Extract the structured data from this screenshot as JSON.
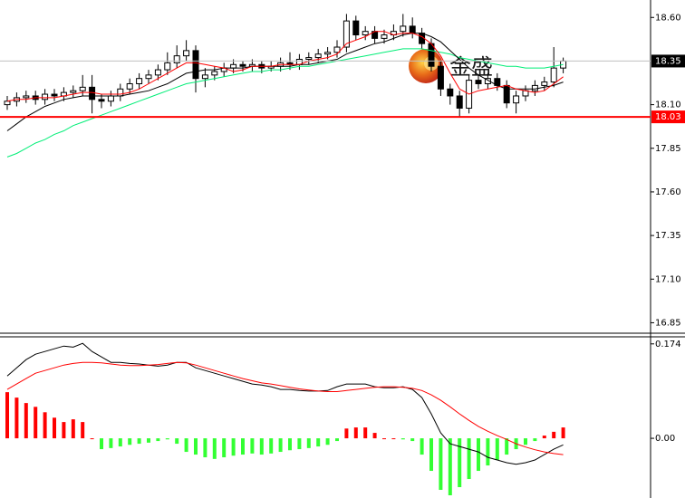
{
  "watermark": "金盛",
  "chart_data": [
    {
      "type": "candlestick",
      "open": [
        18.1,
        18.12,
        18.14,
        18.15,
        18.13,
        18.16,
        18.15,
        18.17,
        18.18,
        18.2,
        18.13,
        18.12,
        18.15,
        18.19,
        18.22,
        18.25,
        18.27,
        18.3,
        18.34,
        18.38,
        18.41,
        18.25,
        18.27,
        18.29,
        18.31,
        18.33,
        18.32,
        18.33,
        18.31,
        18.32,
        18.34,
        18.33,
        18.36,
        18.37,
        18.39,
        18.4,
        18.43,
        18.58,
        18.5,
        18.52,
        18.48,
        18.5,
        18.52,
        18.55,
        18.51,
        18.45,
        18.32,
        18.19,
        18.15,
        18.08,
        18.24,
        18.22,
        18.25,
        18.21,
        18.11,
        18.15,
        18.18,
        18.21,
        18.23,
        18.31
      ],
      "high": [
        18.15,
        18.17,
        18.18,
        18.18,
        18.19,
        18.19,
        18.2,
        18.21,
        18.27,
        18.27,
        18.16,
        18.18,
        18.22,
        18.25,
        18.28,
        18.3,
        18.33,
        18.4,
        18.44,
        18.47,
        18.44,
        18.31,
        18.32,
        18.34,
        18.36,
        18.35,
        18.36,
        18.35,
        18.35,
        18.37,
        18.4,
        18.39,
        18.4,
        18.42,
        18.43,
        18.47,
        18.62,
        18.61,
        18.55,
        18.55,
        18.53,
        18.56,
        18.62,
        18.6,
        18.54,
        18.48,
        18.35,
        18.22,
        18.18,
        18.27,
        18.27,
        18.28,
        18.28,
        18.24,
        18.18,
        18.21,
        18.24,
        18.26,
        18.43,
        18.37
      ],
      "low": [
        18.07,
        18.09,
        18.11,
        18.1,
        18.1,
        18.12,
        18.12,
        18.14,
        18.15,
        18.05,
        18.08,
        18.09,
        18.12,
        18.16,
        18.19,
        18.22,
        18.24,
        18.27,
        18.31,
        18.35,
        18.17,
        18.2,
        18.24,
        18.26,
        18.28,
        18.29,
        18.29,
        18.28,
        18.29,
        18.29,
        18.3,
        18.3,
        18.33,
        18.34,
        18.36,
        18.37,
        18.4,
        18.47,
        18.47,
        18.45,
        18.45,
        18.47,
        18.49,
        18.48,
        18.42,
        18.29,
        18.15,
        18.1,
        18.03,
        18.05,
        18.19,
        18.19,
        18.18,
        18.08,
        18.05,
        18.12,
        18.15,
        18.18,
        18.2,
        18.28
      ],
      "close": [
        18.12,
        18.14,
        18.15,
        18.13,
        18.16,
        18.15,
        18.17,
        18.18,
        18.2,
        18.13,
        18.12,
        18.15,
        18.19,
        18.22,
        18.25,
        18.27,
        18.3,
        18.34,
        18.38,
        18.41,
        18.25,
        18.27,
        18.29,
        18.31,
        18.33,
        18.32,
        18.33,
        18.31,
        18.32,
        18.34,
        18.33,
        18.36,
        18.37,
        18.39,
        18.4,
        18.43,
        18.58,
        18.5,
        18.52,
        18.48,
        18.5,
        18.52,
        18.55,
        18.51,
        18.45,
        18.32,
        18.19,
        18.15,
        18.08,
        18.24,
        18.22,
        18.25,
        18.21,
        18.11,
        18.15,
        18.18,
        18.21,
        18.23,
        18.31,
        18.35
      ],
      "up_color": "#ffffff",
      "down_color": "#000000",
      "lines": [
        {
          "color": "#00ee77",
          "values": [
            17.8,
            17.82,
            17.85,
            17.88,
            17.9,
            17.93,
            17.95,
            17.98,
            18.0,
            18.02,
            18.04,
            18.06,
            18.08,
            18.1,
            18.12,
            18.14,
            18.16,
            18.18,
            18.2,
            18.22,
            18.23,
            18.24,
            18.25,
            18.26,
            18.27,
            18.28,
            18.29,
            18.29,
            18.3,
            18.3,
            18.31,
            18.32,
            18.32,
            18.33,
            18.34,
            18.35,
            18.36,
            18.37,
            18.38,
            18.39,
            18.4,
            18.41,
            18.42,
            18.42,
            18.42,
            18.41,
            18.4,
            18.39,
            18.37,
            18.36,
            18.35,
            18.34,
            18.33,
            18.32,
            18.32,
            18.31,
            18.31,
            18.31,
            18.32,
            18.33
          ]
        },
        {
          "color": "#000000",
          "values": [
            17.95,
            17.99,
            18.03,
            18.06,
            18.09,
            18.11,
            18.13,
            18.14,
            18.15,
            18.15,
            18.15,
            18.15,
            18.15,
            18.16,
            18.17,
            18.18,
            18.2,
            18.22,
            18.25,
            18.28,
            18.29,
            18.3,
            18.3,
            18.31,
            18.31,
            18.31,
            18.32,
            18.32,
            18.32,
            18.32,
            18.32,
            18.33,
            18.33,
            18.34,
            18.35,
            18.36,
            18.39,
            18.41,
            18.43,
            18.45,
            18.46,
            18.48,
            18.5,
            18.51,
            18.51,
            18.49,
            18.46,
            18.41,
            18.36,
            18.31,
            18.27,
            18.24,
            18.21,
            18.19,
            18.19,
            18.19,
            18.19,
            18.2,
            18.21,
            18.23
          ]
        },
        {
          "color": "#ff0000",
          "values": [
            18.12,
            18.13,
            18.13,
            18.14,
            18.14,
            18.14,
            18.15,
            18.16,
            18.17,
            18.17,
            18.16,
            18.16,
            18.16,
            18.17,
            18.19,
            18.22,
            18.25,
            18.28,
            18.31,
            18.34,
            18.34,
            18.33,
            18.32,
            18.31,
            18.29,
            18.3,
            18.32,
            18.32,
            18.32,
            18.33,
            18.33,
            18.33,
            18.35,
            18.36,
            18.37,
            18.39,
            18.45,
            18.47,
            18.49,
            18.52,
            18.52,
            18.5,
            18.51,
            18.51,
            18.49,
            18.45,
            18.38,
            18.28,
            18.19,
            18.16,
            18.18,
            18.19,
            18.2,
            18.21,
            18.19,
            18.18,
            18.17,
            18.18,
            18.22,
            18.26
          ]
        }
      ],
      "price_lines": [
        {
          "value": 18.35,
          "color": "#c0c0c0",
          "label_bg": "#000000"
        },
        {
          "value": 18.03,
          "color": "#ff0000",
          "label_bg": "#ff0000"
        }
      ],
      "ylim": [
        16.79,
        18.7
      ],
      "yticks": [
        {
          "value": 16.85,
          "label": "16.85"
        },
        {
          "value": 17.1,
          "label": "17.10"
        },
        17.35,
        {
          "value": 17.6,
          "label": "17.60"
        },
        17.85,
        {
          "value": 18.1,
          "label": "18.10"
        },
        {
          "value": 18.6,
          "label": "18.60"
        }
      ]
    },
    {
      "type": "macd",
      "histogram": [
        0.085,
        0.075,
        0.065,
        0.058,
        0.048,
        0.038,
        0.03,
        0.035,
        0.03,
        0.0,
        -0.02,
        -0.018,
        -0.015,
        -0.012,
        -0.01,
        -0.008,
        -0.005,
        -0.002,
        -0.01,
        -0.025,
        -0.03,
        -0.035,
        -0.038,
        -0.035,
        -0.032,
        -0.03,
        -0.028,
        -0.03,
        -0.028,
        -0.025,
        -0.022,
        -0.02,
        -0.018,
        -0.015,
        -0.012,
        -0.005,
        0.018,
        0.02,
        0.02,
        0.01,
        0.0,
        0.0,
        -0.002,
        -0.005,
        -0.03,
        -0.06,
        -0.095,
        -0.105,
        -0.09,
        -0.075,
        -0.06,
        -0.05,
        -0.04,
        -0.03,
        -0.02,
        -0.012,
        -0.005,
        0.005,
        0.012,
        0.02
      ],
      "positive_color": "#ff0000",
      "negative_color": "#33ff33",
      "lines": [
        {
          "color": "#000000",
          "values": [
            0.115,
            0.13,
            0.145,
            0.155,
            0.16,
            0.165,
            0.17,
            0.168,
            0.175,
            0.16,
            0.15,
            0.14,
            0.14,
            0.138,
            0.137,
            0.135,
            0.133,
            0.135,
            0.14,
            0.14,
            0.13,
            0.125,
            0.12,
            0.115,
            0.11,
            0.105,
            0.1,
            0.098,
            0.095,
            0.09,
            0.09,
            0.088,
            0.087,
            0.087,
            0.088,
            0.095,
            0.1,
            0.1,
            0.1,
            0.095,
            0.093,
            0.093,
            0.095,
            0.09,
            0.075,
            0.045,
            0.01,
            -0.01,
            -0.015,
            -0.02,
            -0.025,
            -0.035,
            -0.04,
            -0.045,
            -0.048,
            -0.045,
            -0.04,
            -0.03,
            -0.02,
            -0.012
          ]
        },
        {
          "color": "#ff0000",
          "values": [
            0.09,
            0.1,
            0.11,
            0.12,
            0.125,
            0.13,
            0.135,
            0.138,
            0.14,
            0.14,
            0.139,
            0.137,
            0.135,
            0.134,
            0.134,
            0.135,
            0.136,
            0.138,
            0.14,
            0.139,
            0.135,
            0.13,
            0.125,
            0.12,
            0.115,
            0.11,
            0.106,
            0.102,
            0.1,
            0.097,
            0.094,
            0.091,
            0.089,
            0.087,
            0.086,
            0.086,
            0.088,
            0.09,
            0.092,
            0.094,
            0.095,
            0.095,
            0.094,
            0.092,
            0.088,
            0.08,
            0.07,
            0.058,
            0.045,
            0.033,
            0.022,
            0.013,
            0.005,
            -0.002,
            -0.01,
            -0.016,
            -0.021,
            -0.025,
            -0.028,
            -0.03
          ]
        }
      ],
      "ylim": [
        -0.11,
        0.187
      ],
      "yticks": [
        {
          "value": 0,
          "label": "0.00"
        },
        0.174
      ]
    }
  ]
}
